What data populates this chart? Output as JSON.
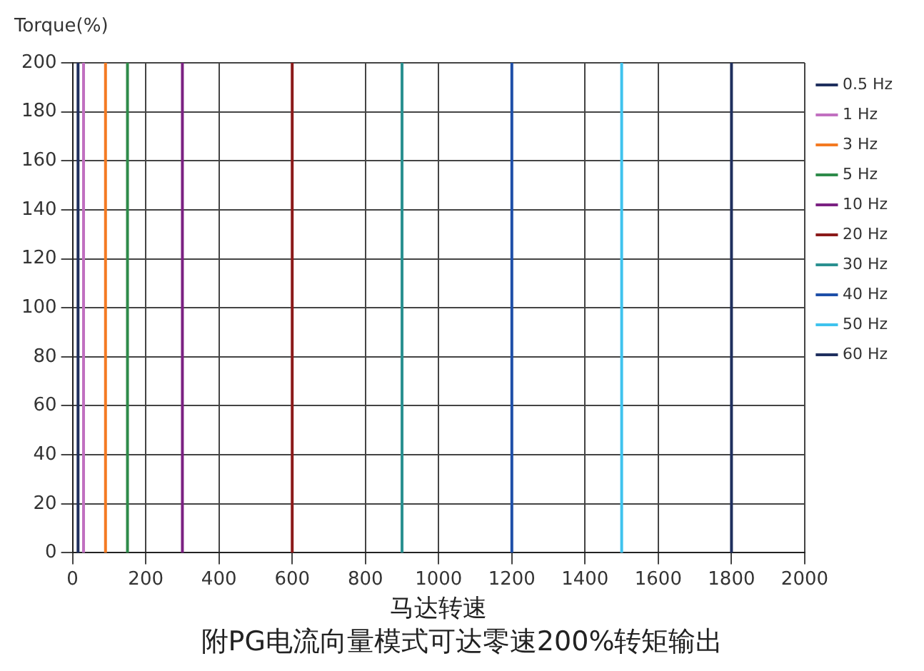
{
  "chart_data": {
    "type": "line",
    "title": "附PG电流向量模式可达零速200%转矩输出",
    "xlabel": "马达转速",
    "ylabel": "Torque(%)",
    "xlim": [
      0,
      2000
    ],
    "xticks": [
      0,
      200,
      400,
      600,
      800,
      1000,
      1200,
      1400,
      1600,
      1800,
      2000
    ],
    "ylim": [
      0,
      200
    ],
    "yticks": [
      0,
      20,
      40,
      60,
      80,
      100,
      120,
      140,
      160,
      180,
      200
    ],
    "grid": true,
    "legend": "top right",
    "marker": "none",
    "line_style": "solid",
    "series": [
      {
        "name": "0.5 Hz",
        "color": "#1f2f5e",
        "x": [
          15,
          15
        ],
        "values": [
          0,
          200
        ]
      },
      {
        "name": "1 Hz",
        "color": "#c170c0",
        "x": [
          30,
          30
        ],
        "values": [
          0,
          200
        ]
      },
      {
        "name": "3 Hz",
        "color": "#f47a22",
        "x": [
          90,
          90
        ],
        "values": [
          0,
          200
        ]
      },
      {
        "name": "5 Hz",
        "color": "#2e8b4a",
        "x": [
          150,
          150
        ],
        "values": [
          0,
          200
        ]
      },
      {
        "name": "10 Hz",
        "color": "#7b2182",
        "x": [
          300,
          300
        ],
        "values": [
          0,
          200
        ]
      },
      {
        "name": "20 Hz",
        "color": "#8b1a1a",
        "x": [
          600,
          600
        ],
        "values": [
          0,
          200
        ]
      },
      {
        "name": "30 Hz",
        "color": "#2a9090",
        "x": [
          900,
          900
        ],
        "values": [
          0,
          200
        ]
      },
      {
        "name": "40 Hz",
        "color": "#1e4fa8",
        "x": [
          1200,
          1200
        ],
        "values": [
          0,
          200
        ]
      },
      {
        "name": "50 Hz",
        "color": "#3fc3ee",
        "x": [
          1500,
          1500
        ],
        "values": [
          0,
          200
        ]
      },
      {
        "name": "60 Hz",
        "color": "#1f2f5e",
        "x": [
          1800,
          1800
        ],
        "values": [
          0,
          200
        ]
      }
    ]
  }
}
